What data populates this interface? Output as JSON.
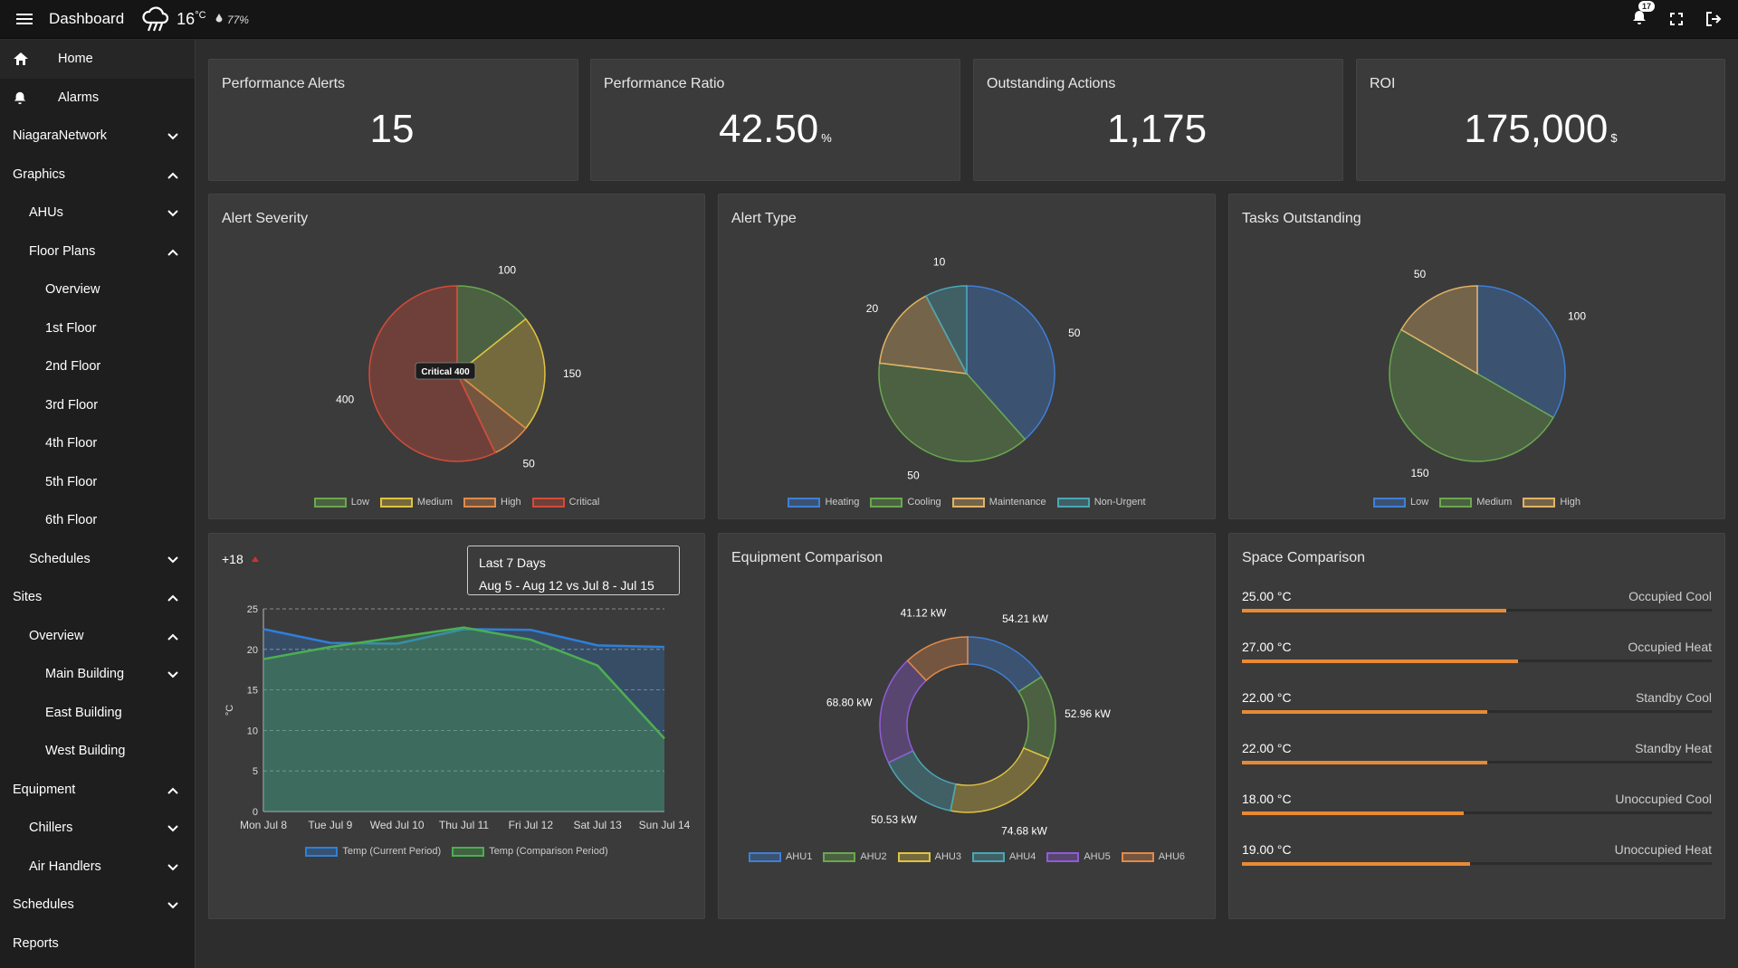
{
  "topbar": {
    "title": "Dashboard",
    "weather_icon": "cloud-rain-icon",
    "temperature": "16",
    "temp_unit": "°C",
    "humidity": "77%",
    "notifications_count": "17"
  },
  "sidebar": {
    "items": [
      {
        "label": "Home",
        "level": "top",
        "icon": "home-icon",
        "chevron": ""
      },
      {
        "label": "Alarms",
        "level": "top",
        "icon": "bell-icon",
        "chevron": ""
      },
      {
        "label": "NiagaraNetwork",
        "level": "l0",
        "chevron": "down"
      },
      {
        "label": "Graphics",
        "level": "l0",
        "chevron": "up"
      },
      {
        "label": "AHUs",
        "level": "l1",
        "chevron": "down"
      },
      {
        "label": "Floor Plans",
        "level": "l1",
        "chevron": "up"
      },
      {
        "label": "Overview",
        "level": "l2",
        "chevron": ""
      },
      {
        "label": "1st Floor",
        "level": "l2",
        "chevron": ""
      },
      {
        "label": "2nd Floor",
        "level": "l2",
        "chevron": ""
      },
      {
        "label": "3rd Floor",
        "level": "l2",
        "chevron": ""
      },
      {
        "label": "4th Floor",
        "level": "l2",
        "chevron": ""
      },
      {
        "label": "5th Floor",
        "level": "l2",
        "chevron": ""
      },
      {
        "label": "6th Floor",
        "level": "l2",
        "chevron": ""
      },
      {
        "label": "Schedules",
        "level": "l1",
        "chevron": "down"
      },
      {
        "label": "Sites",
        "level": "l0",
        "chevron": "up"
      },
      {
        "label": "Overview",
        "level": "l1",
        "chevron": "up"
      },
      {
        "label": "Main Building",
        "level": "l2",
        "chevron": "down"
      },
      {
        "label": "East Building",
        "level": "l2",
        "chevron": ""
      },
      {
        "label": "West Building",
        "level": "l2",
        "chevron": ""
      },
      {
        "label": "Equipment",
        "level": "l0",
        "chevron": "up"
      },
      {
        "label": "Chillers",
        "level": "l1",
        "chevron": "down"
      },
      {
        "label": "Air Handlers",
        "level": "l1",
        "chevron": "down"
      },
      {
        "label": "Schedules",
        "level": "l0",
        "chevron": "down"
      },
      {
        "label": "Reports",
        "level": "l0",
        "chevron": ""
      }
    ]
  },
  "kpis": [
    {
      "title": "Performance Alerts",
      "value": "15",
      "unit": ""
    },
    {
      "title": "Performance Ratio",
      "value": "42.50",
      "unit": "%"
    },
    {
      "title": "Outstanding Actions",
      "value": "1,175",
      "unit": ""
    },
    {
      "title": "ROI",
      "value": "175,000",
      "unit": "$"
    }
  ],
  "trend": {
    "delta": "+18",
    "range_title": "Last 7 Days",
    "range_detail": "Aug 5 - Aug 12 vs Jul 8 - Jul 15",
    "colors": {
      "current": "#2f7fd9",
      "comparison": "#4caf50",
      "delta_arrow": "#d32f2f"
    }
  },
  "space": {
    "title": "Space Comparison",
    "accent": "#e88a35",
    "rows": [
      {
        "value": "25.00 °C",
        "name": "Occupied Cool",
        "fraction": 0.562
      },
      {
        "value": "27.00 °C",
        "name": "Occupied Heat",
        "fraction": 0.588
      },
      {
        "value": "22.00 °C",
        "name": "Standby Cool",
        "fraction": 0.523
      },
      {
        "value": "22.00 °C",
        "name": "Standby Heat",
        "fraction": 0.523
      },
      {
        "value": "18.00 °C",
        "name": "Unoccupied Cool",
        "fraction": 0.473
      },
      {
        "value": "19.00 °C",
        "name": "Unoccupied Heat",
        "fraction": 0.485
      }
    ]
  },
  "chart_data": [
    {
      "type": "pie",
      "title": "Alert Severity",
      "categories": [
        "Low",
        "Medium",
        "High",
        "Critical"
      ],
      "values": [
        100,
        150,
        50,
        400
      ],
      "colors": [
        "#6aa84f",
        "#e0c341",
        "#e08a4a",
        "#d24b3a"
      ],
      "tooltip": "Critical 400"
    },
    {
      "type": "pie",
      "title": "Alert Type",
      "categories": [
        "Heating",
        "Cooling",
        "Maintenance",
        "Non-Urgent"
      ],
      "values": [
        50,
        50,
        20,
        10
      ],
      "colors": [
        "#3f7fd6",
        "#6aa84f",
        "#e0b366",
        "#4aa7b5"
      ]
    },
    {
      "type": "pie",
      "title": "Tasks Outstanding",
      "categories": [
        "Low",
        "Medium",
        "High"
      ],
      "values": [
        100,
        150,
        50
      ],
      "colors": [
        "#3f7fd6",
        "#6aa84f",
        "#e0b366"
      ]
    },
    {
      "type": "area",
      "title": "",
      "x": [
        "Mon Jul 8",
        "Tue Jul 9",
        "Wed Jul 10",
        "Thu Jul 11",
        "Fri Jul 12",
        "Sat Jul 13",
        "Sun Jul 14"
      ],
      "ylabel": "°C",
      "ylim": [
        0,
        25
      ],
      "yticks": [
        0,
        5,
        10,
        15,
        20,
        25
      ],
      "grid": true,
      "series": [
        {
          "name": "Temp (Current Period)",
          "values": [
            22.5,
            20.8,
            20.7,
            22.5,
            22.4,
            20.5,
            20.3
          ],
          "color": "#2f7fd9"
        },
        {
          "name": "Temp (Comparison Period)",
          "values": [
            18.8,
            20.3,
            21.5,
            22.7,
            21.2,
            18.0,
            9.0
          ],
          "color": "#4caf50"
        }
      ],
      "legend": "bottom"
    },
    {
      "type": "pie",
      "title": "Equipment Comparison",
      "donut": true,
      "categories": [
        "AHU1",
        "AHU2",
        "AHU3",
        "AHU4",
        "AHU5",
        "AHU6"
      ],
      "values": [
        54.21,
        52.96,
        74.68,
        50.53,
        68.8,
        41.12
      ],
      "labels": [
        "54.21 kW",
        "52.96 kW",
        "74.68 kW",
        "50.53 kW",
        "68.80 kW",
        "41.12 kW"
      ],
      "colors": [
        "#3f7fd6",
        "#6aa84f",
        "#e0c341",
        "#4aa7b5",
        "#8f5cd6",
        "#e08a4a"
      ]
    }
  ]
}
